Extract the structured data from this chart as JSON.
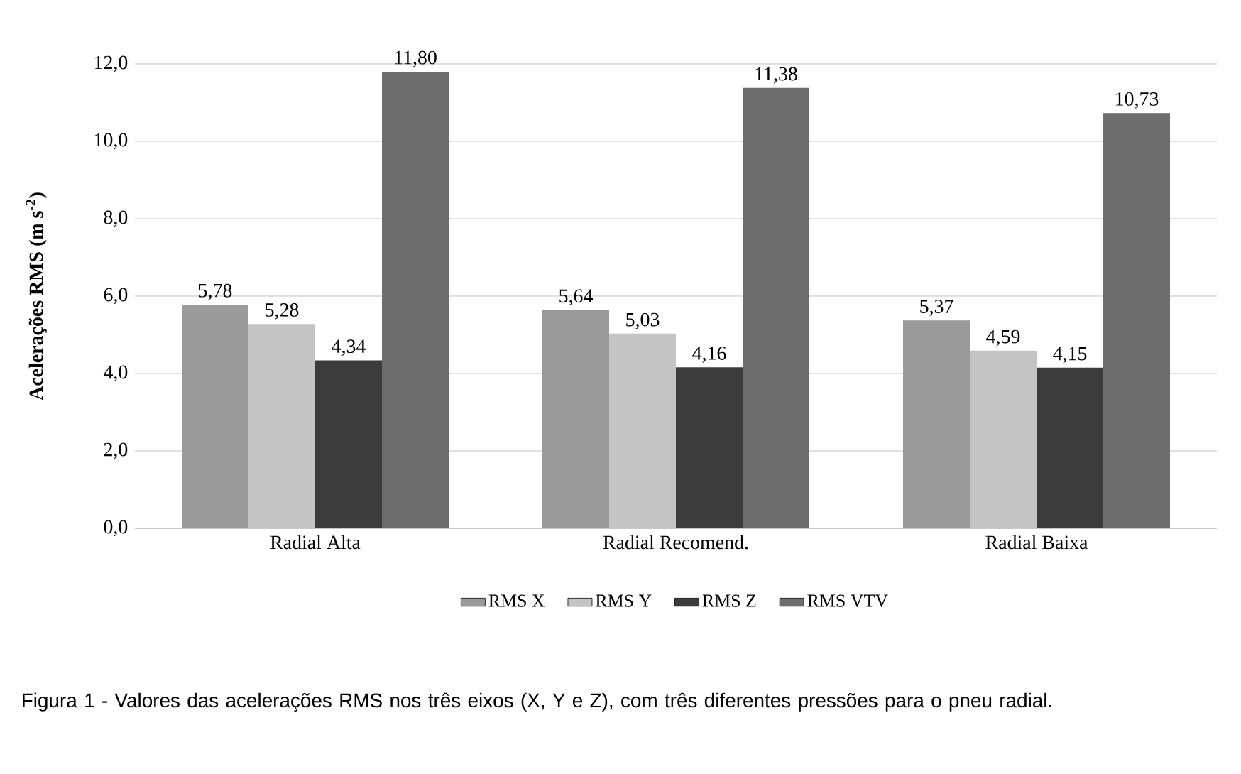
{
  "chart_data": {
    "type": "bar",
    "ylabel": "Acelerações RMS (m s$^{-2}$)",
    "categories": [
      "Radial Alta",
      "Radial Recomend.",
      "Radial Baixa"
    ],
    "series": [
      {
        "name": "RMS X",
        "color": "#9a9a9a",
        "values": [
          5.78,
          5.64,
          5.37
        ],
        "value_labels": [
          "5,78",
          "5,64",
          "5,37"
        ]
      },
      {
        "name": "RMS Y",
        "color": "#c4c4c4",
        "values": [
          5.28,
          5.03,
          4.59
        ],
        "value_labels": [
          "5,28",
          "5,03",
          "4,59"
        ]
      },
      {
        "name": "RMS Z",
        "color": "#3c3c3c",
        "values": [
          4.34,
          4.16,
          4.15
        ],
        "value_labels": [
          "4,34",
          "4,16",
          "4,15"
        ]
      },
      {
        "name": "RMS VTV",
        "color": "#6d6d6d",
        "values": [
          11.8,
          11.38,
          10.73
        ],
        "value_labels": [
          "11,80",
          "11,38",
          "10,73"
        ]
      }
    ],
    "ylim": [
      0,
      12
    ],
    "yticks": [
      {
        "value": 0,
        "label": "0,0"
      },
      {
        "value": 2,
        "label": "2,0"
      },
      {
        "value": 4,
        "label": "4,0"
      },
      {
        "value": 6,
        "label": "6,0"
      },
      {
        "value": 8,
        "label": "8,0"
      },
      {
        "value": 10,
        "label": "10,0"
      },
      {
        "value": 12,
        "label": "12,0"
      }
    ],
    "grid": "y",
    "legend": "bottom",
    "annotations": [
      "Figura 1 - Valores das acelerações RMS nos três eixos (X, Y e Z), com três diferentes pressões para o pneu radial."
    ]
  }
}
